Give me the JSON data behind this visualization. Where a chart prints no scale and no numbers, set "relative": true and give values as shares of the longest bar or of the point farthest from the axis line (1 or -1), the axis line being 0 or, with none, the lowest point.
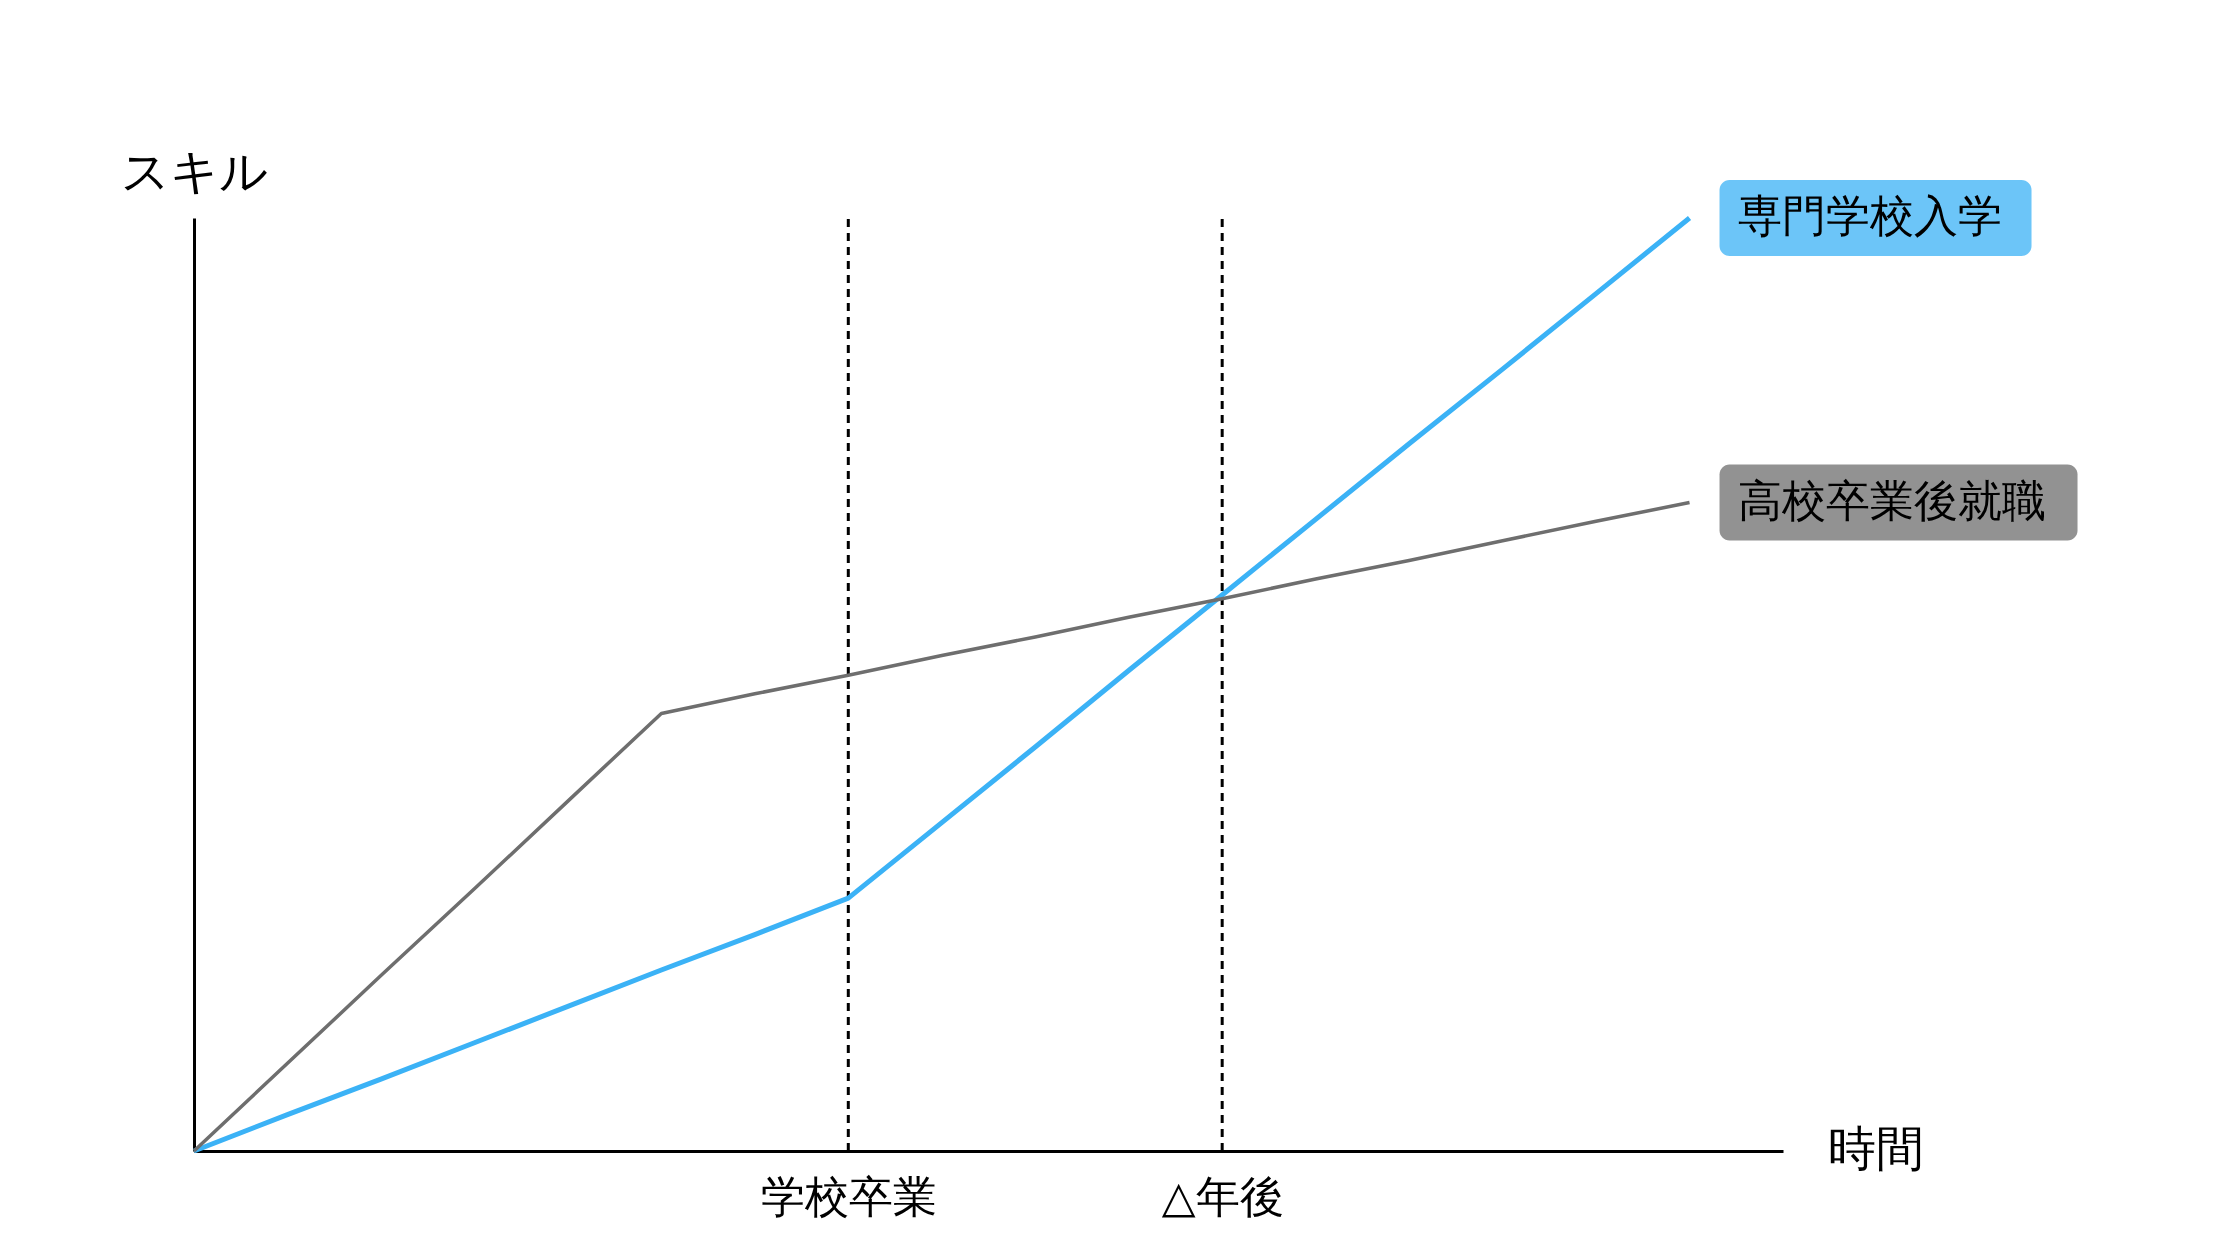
{
  "chart_data": {
    "type": "line",
    "relative": true,
    "xlabel": "時間",
    "ylabel": "スキル",
    "categories": [
      null,
      null,
      null,
      null,
      null,
      null,
      null,
      "学校卒業",
      null,
      null,
      null,
      "△年後",
      null,
      null,
      null,
      null,
      null,
      null
    ],
    "tick_labels": "x",
    "grid": false,
    "series": [
      {
        "name": "専門学校入学",
        "color": "#3bb2f6",
        "values": [
          0,
          0.039,
          0.077,
          0.116,
          0.155,
          0.194,
          0.232,
          0.271,
          0.352,
          0.433,
          0.515,
          0.596,
          0.677,
          0.758,
          0.838,
          0.919,
          1,
          null
        ]
      },
      {
        "name": "高校卒業後就職",
        "color": "#6e6e6e",
        "values": [
          0,
          0.094,
          0.188,
          0.281,
          0.375,
          0.469,
          0.49,
          0.51,
          0.531,
          0.551,
          0.572,
          0.592,
          0.613,
          0.633,
          0.654,
          0.675,
          0.695,
          null
        ]
      }
    ],
    "ref_lines": [
      {
        "axis": "x",
        "value": "学校卒業",
        "color": "#000000",
        "line_style": "dashed"
      },
      {
        "axis": "x",
        "value": "△年後",
        "color": "#000000",
        "line_style": "dashed"
      }
    ]
  }
}
